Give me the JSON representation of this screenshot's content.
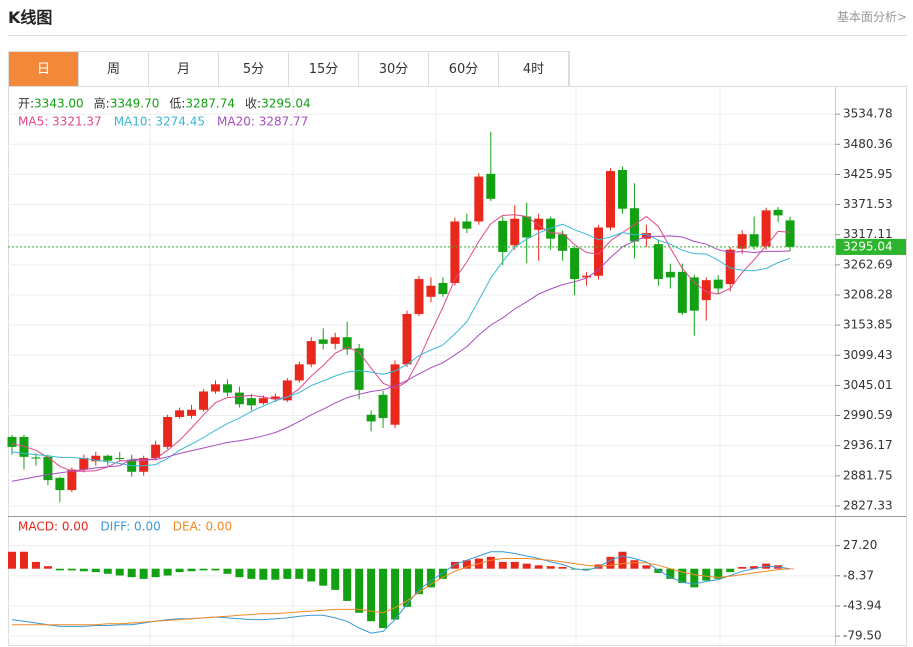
{
  "header": {
    "title": "K线图",
    "link": "基本面分析>"
  },
  "tabs": [
    "日",
    "周",
    "月",
    "5分",
    "15分",
    "30分",
    "60分",
    "4时"
  ],
  "active_tab": 0,
  "chart_data": [
    {
      "type": "candlestick",
      "info": [
        {
          "label": "开:",
          "value": "3343.00"
        },
        {
          "label": "高:",
          "value": "3349.70"
        },
        {
          "label": "低:",
          "value": "3287.74"
        },
        {
          "label": "收:",
          "value": "3295.04"
        }
      ],
      "up_color": "#e8281c",
      "down_color": "#13a113",
      "last_color": "#2db52d",
      "open": [
        2952,
        2952,
        2915,
        2916,
        2878,
        2856,
        2893,
        2908,
        2918,
        2914,
        2911,
        2889,
        2914,
        2934,
        2988,
        2990,
        3001,
        3034,
        3047,
        3032,
        3022,
        3013,
        3020,
        3018,
        3054,
        3083,
        3128,
        3120,
        3132,
        3112,
        2992,
        3028,
        2974,
        3083,
        3174,
        3205,
        3230,
        3230,
        3341,
        3341,
        3427,
        3342,
        3298,
        3350,
        3326,
        3346,
        3318,
        3293,
        3240,
        3243,
        3330,
        3434,
        3365,
        3310,
        3300,
        3250,
        3250,
        3240,
        3199,
        3236,
        3228,
        3292,
        3318,
        3296,
        3362,
        3343.0
      ],
      "high": [
        2956,
        2956,
        2922,
        2920,
        2880,
        2897,
        2920,
        2925,
        2920,
        2925,
        2920,
        2918,
        2945,
        2992,
        3005,
        3010,
        3038,
        3054,
        3056,
        3043,
        3030,
        3027,
        3030,
        3058,
        3088,
        3132,
        3148,
        3140,
        3160,
        3120,
        3000,
        3035,
        3090,
        3180,
        3243,
        3240,
        3240,
        3348,
        3355,
        3428,
        3503,
        3350,
        3370,
        3375,
        3355,
        3350,
        3325,
        3296,
        3250,
        3335,
        3437,
        3440,
        3410,
        3335,
        3308,
        3265,
        3265,
        3245,
        3240,
        3244,
        3295,
        3325,
        3350,
        3366,
        3367,
        3349.7
      ],
      "low": [
        2920,
        2893,
        2900,
        2865,
        2834,
        2852,
        2888,
        2900,
        2900,
        2908,
        2880,
        2882,
        2910,
        2930,
        2985,
        2985,
        2998,
        3030,
        3025,
        3005,
        3000,
        3010,
        3015,
        3015,
        3050,
        3078,
        3110,
        3110,
        3100,
        3020,
        2962,
        2968,
        2968,
        3078,
        3170,
        3195,
        3205,
        3225,
        3320,
        3335,
        3378,
        3262,
        3290,
        3266,
        3270,
        3290,
        3270,
        3208,
        3225,
        3236,
        3325,
        3355,
        3274,
        3295,
        3225,
        3220,
        3172,
        3135,
        3162,
        3210,
        3215,
        3282,
        3290,
        3290,
        3340,
        3287.74
      ],
      "close": [
        2934,
        2916,
        2913,
        2874,
        2856,
        2893,
        2914,
        2918,
        2909,
        2913,
        2889,
        2914,
        2938,
        2988,
        3000,
        3001,
        3034,
        3047,
        3032,
        3011,
        3009,
        3022,
        3025,
        3054,
        3083,
        3125,
        3120,
        3132,
        3110,
        3037,
        2980,
        2986,
        3083,
        3174,
        3237,
        3225,
        3210,
        3341,
        3328,
        3422,
        3382,
        3286,
        3346,
        3312,
        3346,
        3310,
        3288,
        3237,
        3243,
        3330,
        3432,
        3364,
        3305,
        3320,
        3237,
        3240,
        3176,
        3180,
        3235,
        3220,
        3290,
        3318,
        3296,
        3361,
        3352,
        3295.04
      ],
      "series": [
        {
          "name": "MA5: 3321.37",
          "color": "#e0488a",
          "values": [
            2940,
            2935,
            2928,
            2915,
            2899,
            2890,
            2890,
            2891,
            2898,
            2909,
            2909,
            2909,
            2913,
            2928,
            2946,
            2968,
            2992,
            3014,
            3023,
            3025,
            3027,
            3024,
            3020,
            3024,
            3039,
            3062,
            3081,
            3103,
            3114,
            3105,
            3076,
            3049,
            3039,
            3052,
            3092,
            3141,
            3186,
            3237,
            3268,
            3305,
            3337,
            3352,
            3353,
            3350,
            3334,
            3320,
            3320,
            3299,
            3285,
            3282,
            3306,
            3321,
            3335,
            3350,
            3332,
            3293,
            3256,
            3231,
            3214,
            3210,
            3220,
            3249,
            3272,
            3297,
            3323,
            3321.37
          ]
        },
        {
          "name": "MA10: 3274.45",
          "color": "#3bb8d6",
          "values": [
            2925,
            2922,
            2920,
            2918,
            2915,
            2915,
            2913,
            2910,
            2907,
            2904,
            2900,
            2900,
            2902,
            2913,
            2928,
            2939,
            2951,
            2964,
            2976,
            2986,
            2998,
            3008,
            3017,
            3024,
            3032,
            3045,
            3053,
            3062,
            3069,
            3072,
            3069,
            3065,
            3071,
            3083,
            3099,
            3109,
            3118,
            3138,
            3160,
            3199,
            3239,
            3269,
            3295,
            3309,
            3320,
            3329,
            3336,
            3326,
            3318,
            3308,
            3313,
            3321,
            3317,
            3318,
            3307,
            3300,
            3289,
            3283,
            3282,
            3271,
            3257,
            3253,
            3252,
            3256,
            3267,
            3274.45
          ]
        },
        {
          "name": "MA20: 3287.77",
          "color": "#a84dc0",
          "values": [
            2872,
            2876,
            2880,
            2884,
            2887,
            2890,
            2893,
            2896,
            2898,
            2900,
            2912,
            2911,
            2911,
            2916,
            2922,
            2927,
            2932,
            2937,
            2942,
            2945,
            2949,
            2954,
            2960,
            2969,
            2980,
            2992,
            3002,
            3013,
            3023,
            3029,
            3034,
            3037,
            3044,
            3054,
            3066,
            3077,
            3086,
            3100,
            3115,
            3136,
            3154,
            3167,
            3183,
            3196,
            3210,
            3219,
            3227,
            3232,
            3239,
            3254,
            3276,
            3295,
            3306,
            3314,
            3314,
            3315,
            3313,
            3305,
            3300,
            3290,
            3285,
            3287,
            3285,
            3287,
            3287,
            3287.77
          ]
        }
      ],
      "ylim": [
        2811,
        3582
      ],
      "yticks": [
        3534.78,
        3480.36,
        3425.95,
        3371.53,
        3317.11,
        3262.69,
        3208.28,
        3153.85,
        3099.43,
        3045.01,
        2990.59,
        2936.17,
        2881.75,
        2827.33
      ],
      "grid": true
    },
    {
      "type": "macd",
      "series": [
        {
          "name": "MACD: 0.00",
          "style": "bar",
          "color": "#e8281c",
          "down_color": "#13a113",
          "values": [
            20,
            20,
            8,
            3,
            -2,
            -2,
            -3,
            -4,
            -6,
            -8,
            -10,
            -12,
            -10,
            -8,
            -4,
            -3,
            -2,
            -2,
            -6,
            -10,
            -12,
            -13,
            -13,
            -12,
            -12,
            -15,
            -20,
            -25,
            -38,
            -52,
            -62,
            -70,
            -60,
            -45,
            -30,
            -22,
            -12,
            8,
            10,
            12,
            14,
            8,
            8,
            6,
            4,
            3,
            2,
            -1,
            -1,
            5,
            14,
            20,
            10,
            4,
            -5,
            -12,
            -17,
            -22,
            -14,
            -12,
            -4,
            2,
            3,
            6,
            4,
            0
          ]
        },
        {
          "name": "DIFF: 0.00",
          "style": "line",
          "color": "#3a9ad9",
          "values": [
            -60,
            -62,
            -64,
            -66,
            -68,
            -68,
            -68,
            -67,
            -67,
            -66,
            -66,
            -64,
            -62,
            -60,
            -59,
            -59,
            -58,
            -57,
            -58,
            -59,
            -60,
            -60,
            -59,
            -58,
            -56,
            -55,
            -55,
            -58,
            -62,
            -70,
            -76,
            -74,
            -60,
            -42,
            -25,
            -14,
            -5,
            5,
            10,
            15,
            20,
            20,
            18,
            15,
            12,
            8,
            5,
            0,
            -2,
            2,
            10,
            15,
            12,
            8,
            -2,
            -10,
            -16,
            -18,
            -15,
            -13,
            -8,
            -3,
            0,
            3,
            2,
            0
          ]
        },
        {
          "name": "DEA: 0.00",
          "style": "line",
          "color": "#f08a24",
          "values": [
            -66,
            -66,
            -66,
            -66,
            -66,
            -66,
            -66,
            -66,
            -65,
            -65,
            -64,
            -63,
            -62,
            -61,
            -60,
            -59,
            -58,
            -57,
            -56,
            -55,
            -54,
            -53,
            -53,
            -52,
            -51,
            -50,
            -49,
            -48,
            -48,
            -48,
            -50,
            -52,
            -46,
            -38,
            -28,
            -18,
            -10,
            -3,
            2,
            6,
            10,
            12,
            12,
            12,
            11,
            10,
            8,
            6,
            4,
            3,
            4,
            6,
            7,
            7,
            4,
            0,
            -4,
            -7,
            -9,
            -10,
            -9,
            -7,
            -5,
            -3,
            -1,
            0
          ]
        }
      ],
      "ylim": [
        -90,
        61
      ],
      "yticks": [
        {
          "value": 27.2,
          "label": "27.20"
        },
        -8.37,
        -43.94,
        {
          "value": -79.5,
          "label": "-79.50"
        }
      ],
      "grid": true
    }
  ]
}
